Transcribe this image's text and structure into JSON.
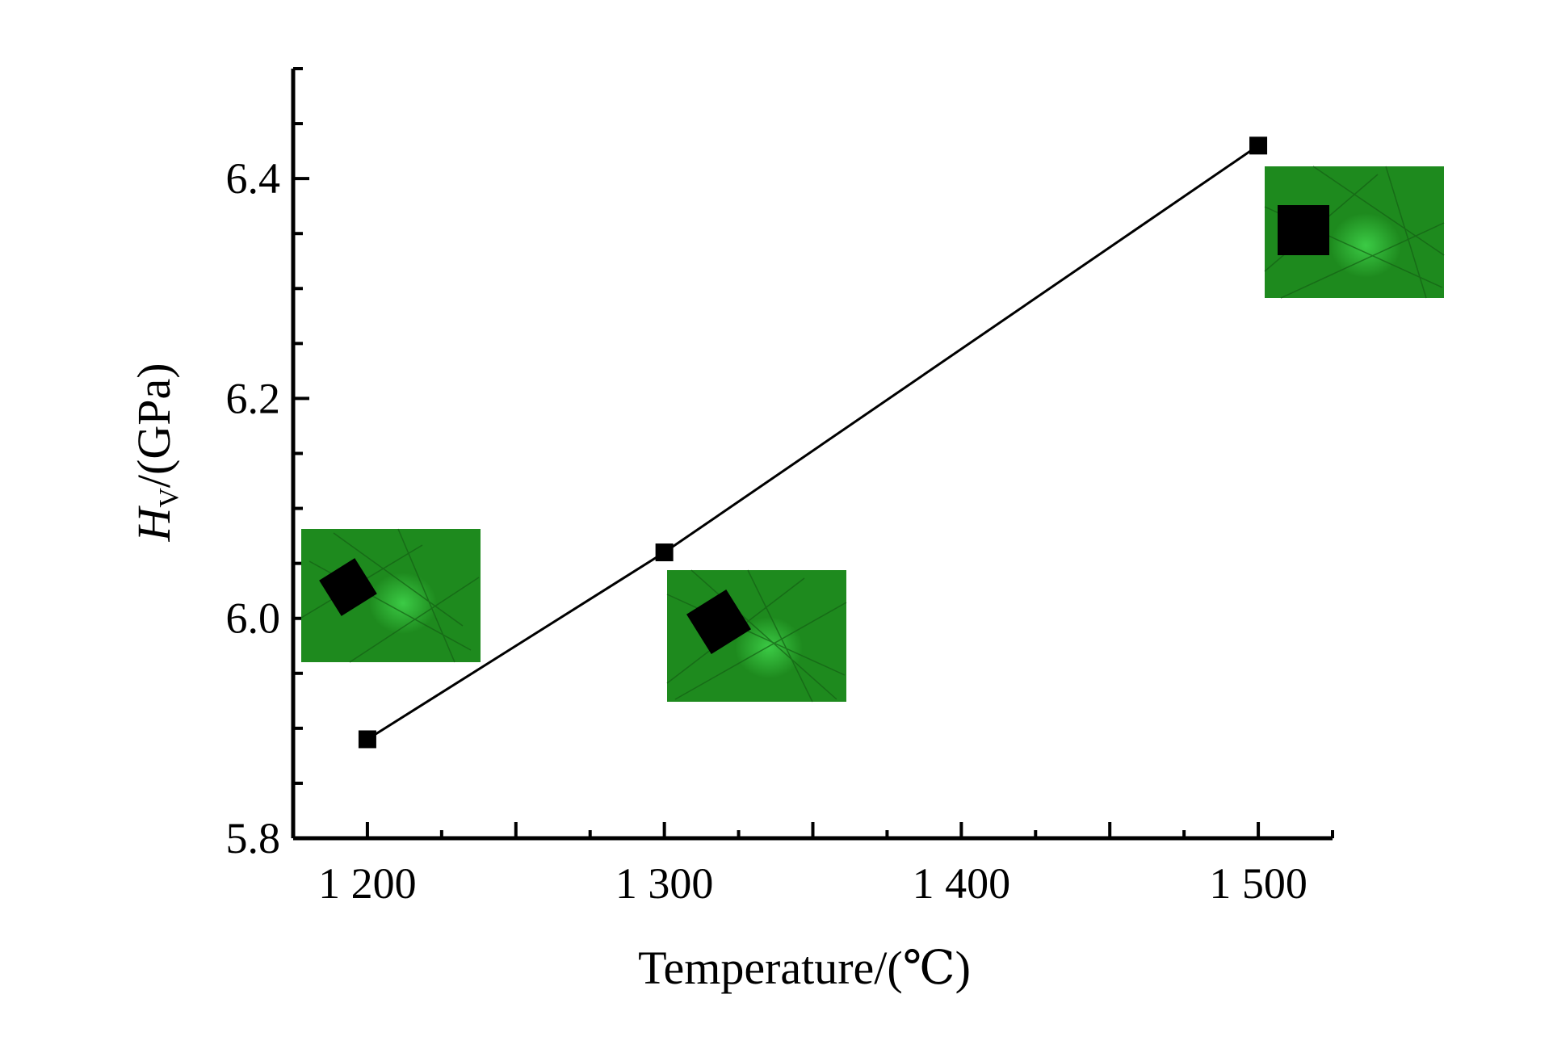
{
  "chart_data": {
    "type": "line",
    "x": [
      1200,
      1300,
      1500
    ],
    "y": [
      5.89,
      6.06,
      6.43
    ],
    "series": [
      {
        "values": [
          5.89,
          6.06,
          6.43
        ]
      }
    ],
    "xlabel": "Temperature/(℃)",
    "ylabel_main": "H",
    "ylabel_sub": "V",
    "ylabel_rest": "/(GPa)",
    "xlim": [
      1175,
      1525
    ],
    "ylim": [
      5.8,
      6.5
    ],
    "x_ticks": [
      1200,
      1300,
      1400,
      1500
    ],
    "x_tick_labels": [
      "1 200",
      "1 300",
      "1 400",
      "1 500"
    ],
    "y_ticks": [
      5.8,
      6.0,
      6.2,
      6.4
    ],
    "y_tick_labels": [
      "5.8",
      "6.0",
      "6.2",
      "6.4"
    ],
    "grid": false,
    "marker": "square",
    "colors": {
      "line": "#000000",
      "marker": "#000000",
      "micrograph": "#1e8a1e",
      "indent": "#000000"
    },
    "insets": [
      {
        "label": "micrograph-1200",
        "icon": "vickers-indent-micrograph"
      },
      {
        "label": "micrograph-1300",
        "icon": "vickers-indent-micrograph"
      },
      {
        "label": "micrograph-1500",
        "icon": "vickers-indent-micrograph"
      }
    ]
  }
}
